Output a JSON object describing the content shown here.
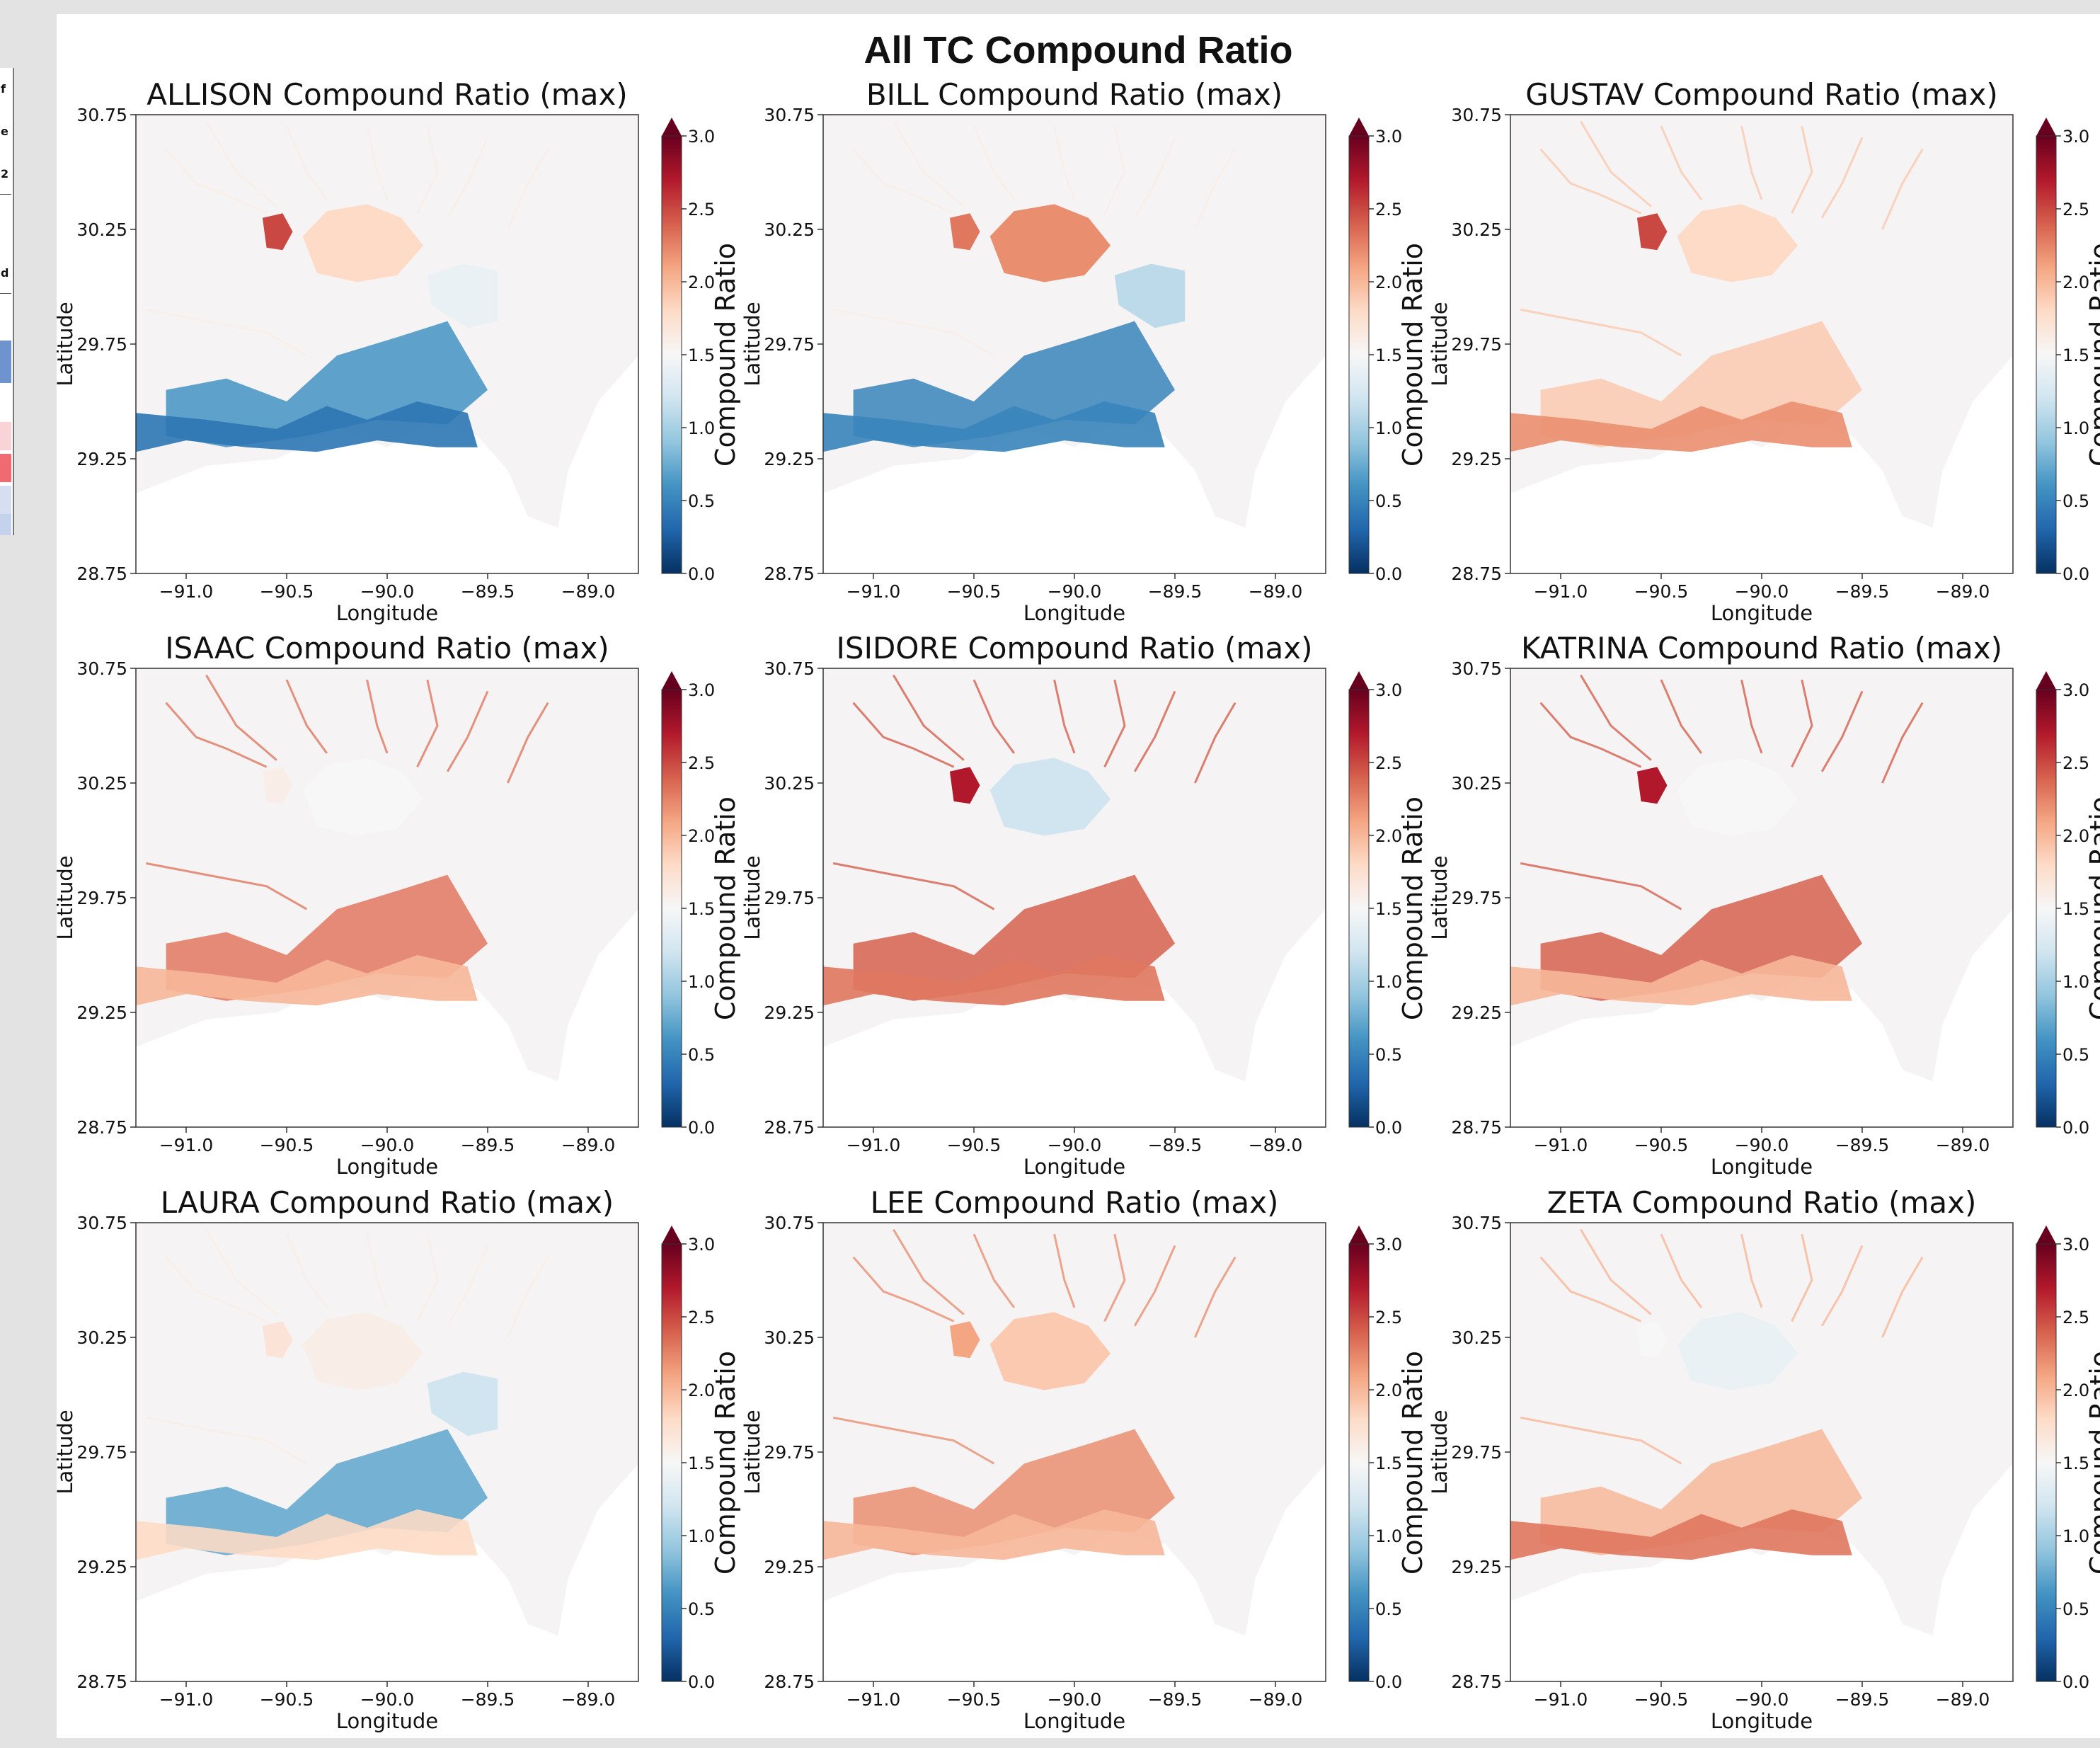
{
  "chart_data": {
    "title": "All TC Compound Ratio",
    "type": "heatmap",
    "colormap": "RdBu_r",
    "colors": {
      "low": "#053061",
      "mid": "#f7f7f7",
      "high": "#67001f"
    },
    "axes": {
      "xlabel": "Longitude",
      "ylabel": "Latitude",
      "xlim": [
        -91.25,
        -88.75
      ],
      "ylim": [
        28.75,
        30.75
      ],
      "xticks": [
        "−91.0",
        "−90.5",
        "−90.0",
        "−89.5",
        "−89.0"
      ],
      "yticks": [
        "28.75",
        "29.25",
        "29.75",
        "30.25",
        "30.75"
      ]
    },
    "colorbar": {
      "label": "Compound Ratio",
      "range": [
        0.0,
        3.0
      ],
      "extend": "max",
      "ticks": [
        "0.0",
        "0.5",
        "1.0",
        "1.5",
        "2.0",
        "2.5",
        "3.0"
      ]
    },
    "panels": [
      {
        "storm": "ALLISON",
        "title": "ALLISON Compound Ratio (max)",
        "lake_ratio": 1.8,
        "west_lake_ratio": 2.5,
        "borgne_ratio": 1.4,
        "marsh_ratio": 0.6,
        "coast_ratio": 0.4
      },
      {
        "storm": "BILL",
        "title": "BILL Compound Ratio (max)",
        "lake_ratio": 2.2,
        "west_lake_ratio": 2.3,
        "borgne_ratio": 1.1,
        "marsh_ratio": 0.5,
        "coast_ratio": 0.5
      },
      {
        "storm": "GUSTAV",
        "title": "GUSTAV Compound Ratio (max)",
        "lake_ratio": 1.8,
        "west_lake_ratio": 2.5,
        "borgne_ratio": 0.0,
        "marsh_ratio": 1.9,
        "coast_ratio": 2.2
      },
      {
        "storm": "ISAAC",
        "title": "ISAAC Compound Ratio (max)",
        "lake_ratio": 1.5,
        "west_lake_ratio": 1.6,
        "borgne_ratio": 0.0,
        "marsh_ratio": 2.3,
        "coast_ratio": 2.0
      },
      {
        "storm": "ISIDORE",
        "title": "ISIDORE Compound Ratio (max)",
        "lake_ratio": 1.2,
        "west_lake_ratio": 2.7,
        "borgne_ratio": 0.0,
        "marsh_ratio": 2.4,
        "coast_ratio": 2.3
      },
      {
        "storm": "KATRINA",
        "title": "KATRINA Compound Ratio (max)",
        "lake_ratio": 1.5,
        "west_lake_ratio": 2.7,
        "borgne_ratio": 0.0,
        "marsh_ratio": 2.4,
        "coast_ratio": 2.0
      },
      {
        "storm": "LAURA",
        "title": "LAURA Compound Ratio (max)",
        "lake_ratio": 1.6,
        "west_lake_ratio": 1.7,
        "borgne_ratio": 1.2,
        "marsh_ratio": 0.7,
        "coast_ratio": 1.8
      },
      {
        "storm": "LEE",
        "title": "LEE Compound Ratio (max)",
        "lake_ratio": 1.9,
        "west_lake_ratio": 2.1,
        "borgne_ratio": 0.0,
        "marsh_ratio": 2.2,
        "coast_ratio": 2.0
      },
      {
        "storm": "ZETA",
        "title": "ZETA Compound Ratio (max)",
        "lake_ratio": 1.4,
        "west_lake_ratio": 1.5,
        "borgne_ratio": 0.0,
        "marsh_ratio": 2.0,
        "coast_ratio": 2.3
      }
    ]
  },
  "left_strip": {
    "chars": [
      "f",
      "e",
      "2",
      "d"
    ]
  }
}
